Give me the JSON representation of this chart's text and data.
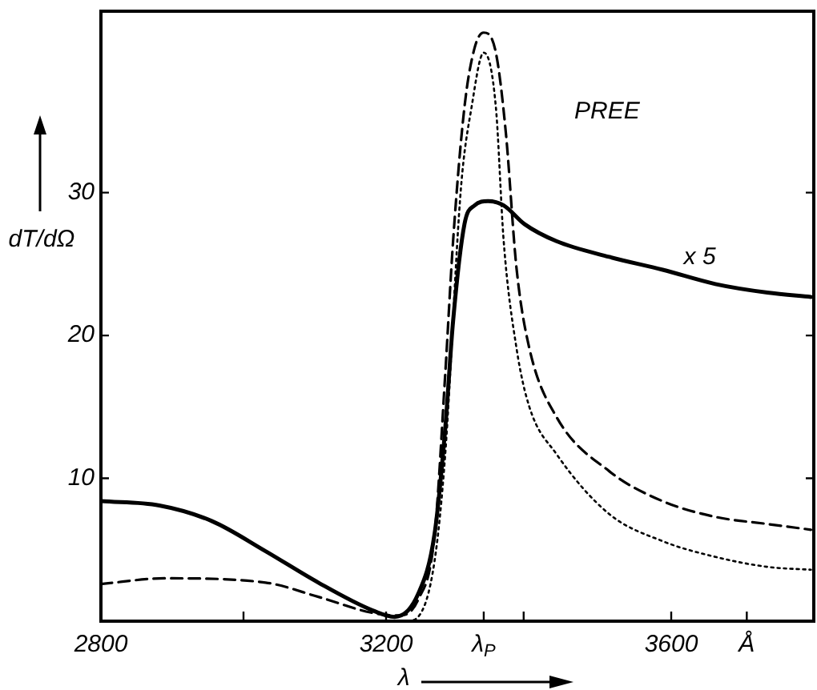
{
  "chart_data": {
    "type": "line",
    "title": "PREE",
    "xlabel": "λ",
    "ylabel": "dT/dΩ",
    "xlim": [
      2800,
      3800
    ],
    "ylim": [
      0,
      42.7
    ],
    "xticks": [
      2800,
      {
        "value": 3000,
        "label": null
      },
      3200,
      {
        "value": 3337,
        "label": "λ$_{P}$"
      },
      {
        "value": 3393,
        "label": null
      },
      3600,
      {
        "value": 3706,
        "label": "Å"
      }
    ],
    "yticks": [
      10,
      20,
      30
    ],
    "series": [
      {
        "color": "#000000",
        "line_style": "solid",
        "x": [
          2800,
          2882,
          2956,
          3031,
          3105,
          3179,
          3212,
          3245,
          3268,
          3283,
          3294,
          3310,
          3324,
          3343,
          3365,
          3394,
          3439,
          3513,
          3588,
          3662,
          3735,
          3796
        ],
        "values": [
          8.4,
          8.1,
          7.0,
          4.9,
          2.7,
          0.8,
          0.3,
          1.9,
          6.1,
          13.5,
          21,
          27.8,
          29.1,
          29.4,
          29.1,
          27.8,
          26.6,
          25.5,
          24.6,
          23.6,
          23.0,
          22.7
        ]
      },
      {
        "color": "#000000",
        "line_style": "dashed",
        "x": [
          2800,
          2890,
          3031,
          3105,
          3179,
          3216,
          3245,
          3268,
          3283,
          3294,
          3310,
          3324,
          3337,
          3354,
          3368,
          3383,
          3401,
          3439,
          3513,
          3588,
          3662,
          3735,
          3796
        ],
        "values": [
          2.6,
          3.0,
          2.7,
          1.7,
          0.6,
          0.4,
          1.5,
          6,
          17.3,
          26.6,
          36,
          40.1,
          41.2,
          39.8,
          34.2,
          24.7,
          19.1,
          14.3,
          10.5,
          8.4,
          7.3,
          6.8,
          6.4
        ]
      },
      {
        "color": "#000000",
        "line_style": "dotted",
        "x": [
          3230,
          3245,
          3268,
          3283,
          3305,
          3320,
          3337,
          3354,
          3365,
          3383,
          3401,
          3439,
          3513,
          3588,
          3662,
          3735,
          3796
        ],
        "values": [
          0,
          0.3,
          4.2,
          11.7,
          30.3,
          36,
          39.8,
          36,
          26.6,
          19.1,
          15,
          11.7,
          7.5,
          5.6,
          4.5,
          3.8,
          3.6
        ]
      }
    ],
    "annotations": [
      {
        "text": "x 5",
        "x": 3640,
        "y": 23.9
      }
    ],
    "grid": false,
    "legend": false
  }
}
